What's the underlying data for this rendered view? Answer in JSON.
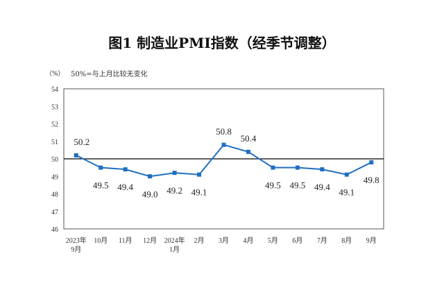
{
  "chart_data": {
    "type": "line",
    "title": "图1  制造业PMI指数（经季节调整）",
    "ylabel": "（%）",
    "annotation": "50%=与上月比较无变化",
    "categories": [
      [
        "2023年",
        "9月"
      ],
      [
        "10月"
      ],
      [
        "11月"
      ],
      [
        "12月"
      ],
      [
        "2024年",
        "1月"
      ],
      [
        "2月"
      ],
      [
        "3月"
      ],
      [
        "4月"
      ],
      [
        "5月"
      ],
      [
        "6月"
      ],
      [
        "7月"
      ],
      [
        "8月"
      ],
      [
        "9月"
      ]
    ],
    "values": [
      50.2,
      49.5,
      49.4,
      49.0,
      49.2,
      49.1,
      50.8,
      50.4,
      49.5,
      49.5,
      49.4,
      49.1,
      49.8
    ],
    "data_labels": [
      "50.2",
      "49.5",
      "49.4",
      "49.0",
      "49.2",
      "49.1",
      "50.8",
      "50.4",
      "49.5",
      "49.5",
      "49.4",
      "49.1",
      "49.8"
    ],
    "label_above": [
      true,
      false,
      false,
      false,
      false,
      false,
      true,
      true,
      false,
      false,
      false,
      false,
      false
    ],
    "ylim": [
      46,
      54
    ],
    "yticks": [
      46,
      47,
      48,
      49,
      50,
      51,
      52,
      53,
      54
    ],
    "reference_line": 50,
    "grid": false,
    "colors": {
      "line": "#1f6fc0",
      "marker": "#1f6fc0",
      "reference": "#000000"
    }
  }
}
